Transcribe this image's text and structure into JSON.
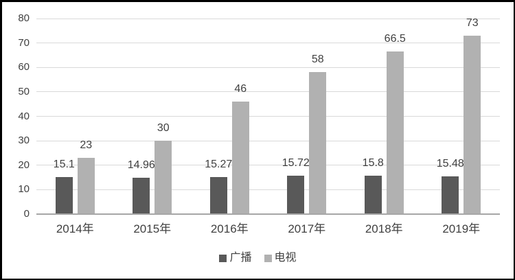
{
  "chart_data": {
    "type": "bar",
    "title": "",
    "categories": [
      "2014年",
      "2015年",
      "2016年",
      "2017年",
      "2018年",
      "2019年"
    ],
    "series": [
      {
        "name": "广播",
        "color": "#595959",
        "values": [
          15.1,
          14.96,
          15.27,
          15.72,
          15.8,
          15.48
        ]
      },
      {
        "name": "电视",
        "color": "#b1b1b1",
        "values": [
          23,
          30,
          46,
          58,
          66.5,
          73
        ]
      }
    ],
    "ylim": [
      0,
      80
    ],
    "yticks": [
      0,
      10,
      20,
      30,
      40,
      50,
      60,
      70,
      80
    ],
    "grid": true,
    "data_labels": true,
    "legend_position": "bottom"
  },
  "colors": {
    "grid": "#d9d9d9",
    "axis_line": "#a6a6a6",
    "text": "#404040",
    "frame_border": "#000000",
    "background": "#ffffff"
  }
}
